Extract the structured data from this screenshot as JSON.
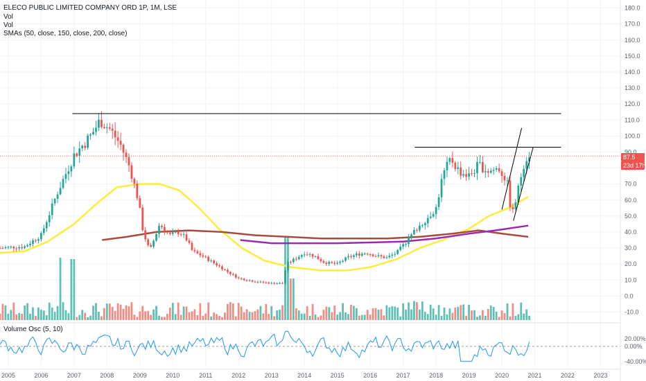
{
  "legend": {
    "title": "ELECO PUBLIC LIMITED COMPANY ORD 1P, 1M, LSE",
    "vol1": "Vol",
    "vol2": "Vol",
    "smas": "SMAs (50, close, 150, close, 200, close)",
    "osc": "Volume Osc (5, 10)"
  },
  "price_tags": {
    "last_price": "87.5",
    "countdown": "23d 17h"
  },
  "colors": {
    "up": "#26a69a",
    "down": "#ef5350",
    "vol_up": "#5ebfb3",
    "vol_down": "#f28b82",
    "sma50": "#ffeb3b",
    "sma150": "#a84b3f",
    "sma200": "#9c27b0",
    "osc_line": "#2196f3",
    "hline": "#000000",
    "last_price_line": "#ef5350"
  },
  "chart_data": [
    {
      "type": "candlestick",
      "title": "ELECO PUBLIC LIMITED COMPANY ORD 1P, 1M, LSE",
      "ylim": [
        -15,
        185
      ],
      "xlim": [
        2004.75,
        2023.6
      ],
      "y_ticks": [
        "180.0",
        "170.0",
        "160.0",
        "150.0",
        "140.0",
        "130.0",
        "120.0",
        "110.0",
        "100.0",
        "90.0",
        "80.0",
        "70.0",
        "60.0",
        "50.0",
        "40.0",
        "30.0",
        "20.0",
        "10.0",
        "0.0",
        "-10.0"
      ],
      "x_ticks": [
        "2005",
        "2006",
        "2007",
        "2008",
        "2009",
        "2010",
        "2011",
        "2012",
        "2013",
        "2014",
        "2015",
        "2016",
        "2017",
        "2018",
        "2019",
        "2020",
        "2021",
        "2022",
        "2023"
      ],
      "price_path": [
        [
          2004.75,
          30
        ],
        [
          2005.5,
          31
        ],
        [
          2006.0,
          38
        ],
        [
          2006.5,
          65
        ],
        [
          2007.0,
          88
        ],
        [
          2007.5,
          100
        ],
        [
          2007.8,
          110
        ],
        [
          2008.1,
          104
        ],
        [
          2008.4,
          95
        ],
        [
          2008.7,
          80
        ],
        [
          2008.95,
          60
        ],
        [
          2009.1,
          40
        ],
        [
          2009.3,
          28
        ],
        [
          2009.6,
          45
        ],
        [
          2009.9,
          38
        ],
        [
          2010.2,
          40
        ],
        [
          2010.4,
          36
        ],
        [
          2010.6,
          28
        ],
        [
          2010.9,
          25
        ],
        [
          2011.3,
          20
        ],
        [
          2011.6,
          16
        ],
        [
          2012.0,
          11
        ],
        [
          2012.5,
          9
        ],
        [
          2013.0,
          8
        ],
        [
          2013.35,
          8
        ],
        [
          2013.45,
          20
        ],
        [
          2013.7,
          23
        ],
        [
          2014.0,
          27
        ],
        [
          2014.3,
          25
        ],
        [
          2014.6,
          21
        ],
        [
          2015.0,
          20
        ],
        [
          2015.3,
          24
        ],
        [
          2015.6,
          26
        ],
        [
          2015.9,
          27
        ],
        [
          2016.2,
          25
        ],
        [
          2016.5,
          24
        ],
        [
          2016.8,
          27
        ],
        [
          2017.1,
          34
        ],
        [
          2017.4,
          42
        ],
        [
          2017.7,
          48
        ],
        [
          2018.0,
          55
        ],
        [
          2018.2,
          75
        ],
        [
          2018.45,
          86
        ],
        [
          2018.7,
          78
        ],
        [
          2019.0,
          75
        ],
        [
          2019.3,
          82
        ],
        [
          2019.6,
          78
        ],
        [
          2019.9,
          80
        ],
        [
          2020.15,
          72
        ],
        [
          2020.3,
          50
        ],
        [
          2020.45,
          62
        ],
        [
          2020.65,
          82
        ],
        [
          2020.8,
          89
        ]
      ],
      "annotations": {
        "resistance_line": {
          "x": [
            2006.95,
            2021.8
          ],
          "y": 114
        },
        "recent_resistance": {
          "x": [
            2017.35,
            2021.8
          ],
          "y": 93
        },
        "channel_lines": [
          [
            [
              2020.0,
              54
            ],
            [
              2020.6,
              105
            ]
          ],
          [
            [
              2020.35,
              47
            ],
            [
              2020.95,
              93
            ]
          ]
        ]
      },
      "series": [
        {
          "name": "SMA 50",
          "color": "#ffeb3b",
          "points": [
            [
              2004.75,
              27
            ],
            [
              2005.5,
              28
            ],
            [
              2006.2,
              34
            ],
            [
              2007.0,
              45
            ],
            [
              2007.7,
              58
            ],
            [
              2008.3,
              68
            ],
            [
              2009.0,
              70
            ],
            [
              2009.6,
              70
            ],
            [
              2010.2,
              66
            ],
            [
              2010.8,
              55
            ],
            [
              2011.4,
              42
            ],
            [
              2012.1,
              30
            ],
            [
              2012.8,
              22
            ],
            [
              2013.6,
              18
            ],
            [
              2014.5,
              16
            ],
            [
              2015.3,
              16
            ],
            [
              2016.0,
              18
            ],
            [
              2016.8,
              23
            ],
            [
              2017.5,
              30
            ],
            [
              2018.2,
              35
            ],
            [
              2019.0,
              42
            ],
            [
              2019.6,
              50
            ],
            [
              2020.2,
              55
            ],
            [
              2020.8,
              62
            ]
          ]
        },
        {
          "name": "SMA 150",
          "color": "#a84b3f",
          "points": [
            [
              2007.85,
              35
            ],
            [
              2008.6,
              37
            ],
            [
              2009.5,
              40
            ],
            [
              2010.5,
              41
            ],
            [
              2011.5,
              40
            ],
            [
              2012.5,
              38
            ],
            [
              2013.5,
              37
            ],
            [
              2014.5,
              36
            ],
            [
              2015.5,
              36
            ],
            [
              2016.5,
              36
            ],
            [
              2017.5,
              37
            ],
            [
              2018.5,
              39
            ],
            [
              2019.3,
              41
            ],
            [
              2020.0,
              39
            ],
            [
              2020.8,
              37
            ]
          ]
        },
        {
          "name": "SMA 200",
          "color": "#9c27b0",
          "points": [
            [
              2012.05,
              35
            ],
            [
              2013.0,
              33
            ],
            [
              2014.0,
              33
            ],
            [
              2015.0,
              33
            ],
            [
              2016.0,
              33.5
            ],
            [
              2017.0,
              34
            ],
            [
              2018.0,
              36
            ],
            [
              2019.0,
              39
            ],
            [
              2019.8,
              41
            ],
            [
              2020.8,
              44
            ]
          ]
        }
      ]
    },
    {
      "type": "line",
      "title": "Volume Osc (5, 10)",
      "ylim": [
        -55,
        55
      ],
      "y_ticks": [
        "20.00%",
        "0.00%",
        "-40.00%"
      ]
    }
  ]
}
